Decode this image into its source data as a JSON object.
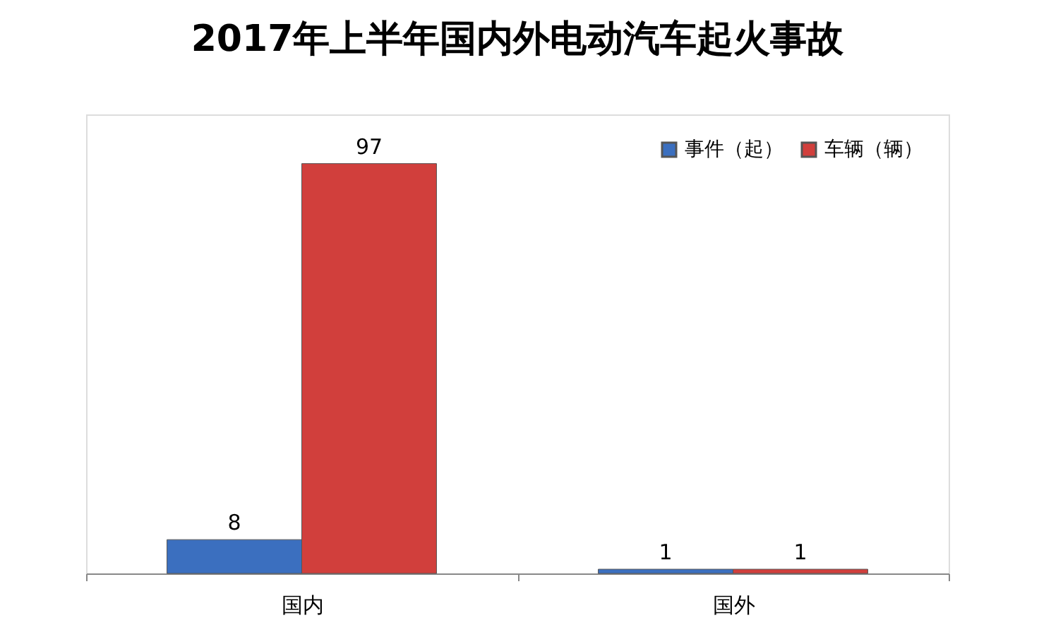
{
  "chart_data": {
    "type": "bar",
    "title": "2017年上半年国内外电动汽车起火事故",
    "categories": [
      "国内",
      "国外"
    ],
    "series": [
      {
        "name": "事件（起）",
        "color": "#3b6fbf",
        "values": [
          8,
          1
        ]
      },
      {
        "name": "车辆（辆）",
        "color": "#d13f3c",
        "values": [
          97,
          1
        ]
      }
    ],
    "data_labels": true,
    "legend": "top right",
    "grid": false
  }
}
